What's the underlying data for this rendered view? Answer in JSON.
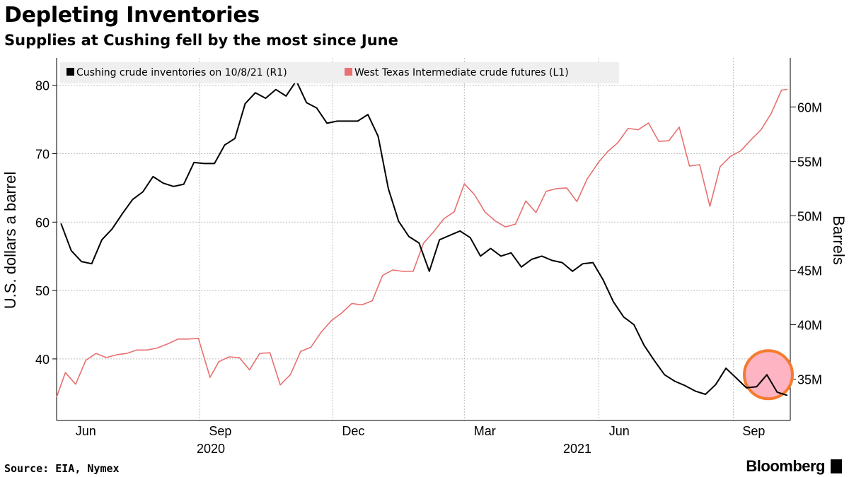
{
  "title": "Depleting Inventories",
  "subtitle": "Supplies at Cushing fell by the most since June",
  "source": "Source: EIA, Nymex",
  "brand": "Bloomberg",
  "chart_data": {
    "type": "line",
    "legend": {
      "placement": "top-left",
      "entries": [
        {
          "label": "Cushing crude inventories on 10/8/21 (R1)",
          "color": "#000000"
        },
        {
          "label": "West Texas Intermediate crude futures (L1)",
          "color": "#e87070"
        }
      ]
    },
    "x_ticks": [
      "Jun",
      "Sep",
      "Dec",
      "Mar",
      "Jun",
      "Sep"
    ],
    "x_year_labels": [
      "2020",
      "2021"
    ],
    "left_axis": {
      "label": "U.S. dollars a barrel",
      "ylim": [
        31,
        84
      ],
      "ticks": [
        "40",
        "50",
        "60",
        "70",
        "80"
      ]
    },
    "right_axis": {
      "label": "Barrels",
      "ylim": [
        31.2,
        64.5
      ],
      "unit": "M",
      "ticks": [
        "35M",
        "40M",
        "45M",
        "50M",
        "55M",
        "60M"
      ]
    },
    "grid": true,
    "highlight": {
      "description": "circled latest drop",
      "color": "#f47c6b",
      "x": "2021-09-25",
      "y_millions": 35.4
    },
    "series": [
      {
        "name": "Cushing crude inventories on 10/8/21 (R1)",
        "axis": "right",
        "color": "#000000",
        "x": [
          "2020-05-29",
          "2020-06-05",
          "2020-06-12",
          "2020-06-19",
          "2020-06-26",
          "2020-07-03",
          "2020-07-10",
          "2020-07-17",
          "2020-07-24",
          "2020-07-31",
          "2020-08-07",
          "2020-08-14",
          "2020-08-21",
          "2020-08-28",
          "2020-09-04",
          "2020-09-11",
          "2020-09-18",
          "2020-09-25",
          "2020-10-02",
          "2020-10-09",
          "2020-10-16",
          "2020-10-23",
          "2020-10-30",
          "2020-11-06",
          "2020-11-13",
          "2020-11-20",
          "2020-11-27",
          "2020-12-04",
          "2020-12-11",
          "2020-12-18",
          "2020-12-25",
          "2021-01-01",
          "2021-01-08",
          "2021-01-15",
          "2021-01-22",
          "2021-01-29",
          "2021-02-05",
          "2021-02-12",
          "2021-02-19",
          "2021-02-26",
          "2021-03-05",
          "2021-03-12",
          "2021-03-19",
          "2021-03-26",
          "2021-04-02",
          "2021-04-09",
          "2021-04-16",
          "2021-04-23",
          "2021-04-30",
          "2021-05-07",
          "2021-05-14",
          "2021-05-21",
          "2021-05-28",
          "2021-06-04",
          "2021-06-11",
          "2021-06-18",
          "2021-06-25",
          "2021-07-02",
          "2021-07-09",
          "2021-07-16",
          "2021-07-23",
          "2021-07-30",
          "2021-08-06",
          "2021-08-13",
          "2021-08-20",
          "2021-08-27",
          "2021-09-03",
          "2021-09-10",
          "2021-09-17",
          "2021-09-24",
          "2021-10-01",
          "2021-10-08"
        ],
        "values": [
          49.3,
          46.8,
          45.8,
          45.6,
          47.8,
          48.8,
          50.2,
          51.5,
          52.2,
          53.6,
          53.0,
          52.7,
          52.9,
          54.9,
          54.8,
          54.8,
          56.5,
          57.1,
          60.3,
          61.3,
          60.8,
          61.6,
          61.0,
          62.4,
          60.4,
          59.9,
          58.5,
          58.7,
          58.7,
          58.7,
          59.3,
          57.3,
          52.5,
          49.5,
          48.1,
          47.5,
          44.9,
          47.8,
          48.2,
          48.6,
          48.0,
          46.3,
          47.0,
          46.3,
          46.6,
          45.3,
          46.0,
          46.3,
          45.9,
          45.7,
          44.9,
          45.6,
          45.7,
          44.1,
          42.1,
          40.7,
          40.0,
          38.1,
          36.7,
          35.4,
          34.8,
          34.4,
          33.9,
          33.6,
          34.5,
          36.0,
          35.1,
          34.2,
          34.3,
          35.4,
          33.8,
          33.5
        ]
      },
      {
        "name": "West Texas Intermediate crude futures (L1)",
        "axis": "left",
        "color": "#e87070",
        "x": [
          "2020-05-26",
          "2020-06-01",
          "2020-06-08",
          "2020-06-15",
          "2020-06-22",
          "2020-06-29",
          "2020-07-06",
          "2020-07-13",
          "2020-07-20",
          "2020-07-27",
          "2020-08-03",
          "2020-08-10",
          "2020-08-17",
          "2020-08-24",
          "2020-08-31",
          "2020-09-08",
          "2020-09-14",
          "2020-09-21",
          "2020-09-28",
          "2020-10-05",
          "2020-10-12",
          "2020-10-19",
          "2020-10-26",
          "2020-11-02",
          "2020-11-09",
          "2020-11-16",
          "2020-11-23",
          "2020-11-30",
          "2020-12-07",
          "2020-12-14",
          "2020-12-21",
          "2020-12-28",
          "2021-01-04",
          "2021-01-11",
          "2021-01-18",
          "2021-01-25",
          "2021-02-01",
          "2021-02-08",
          "2021-02-15",
          "2021-02-22",
          "2021-03-01",
          "2021-03-08",
          "2021-03-15",
          "2021-03-22",
          "2021-03-29",
          "2021-04-05",
          "2021-04-12",
          "2021-04-19",
          "2021-04-26",
          "2021-05-03",
          "2021-05-10",
          "2021-05-17",
          "2021-05-24",
          "2021-06-01",
          "2021-06-07",
          "2021-06-14",
          "2021-06-21",
          "2021-06-28",
          "2021-07-05",
          "2021-07-12",
          "2021-07-19",
          "2021-07-26",
          "2021-08-02",
          "2021-08-09",
          "2021-08-16",
          "2021-08-23",
          "2021-08-30",
          "2021-09-06",
          "2021-09-13",
          "2021-09-20",
          "2021-09-27",
          "2021-10-04",
          "2021-10-08"
        ],
        "values": [
          34.4,
          38.0,
          36.3,
          39.8,
          40.8,
          40.2,
          40.6,
          40.8,
          41.3,
          41.3,
          41.6,
          42.2,
          42.9,
          42.9,
          43.0,
          37.3,
          39.6,
          40.3,
          40.2,
          38.4,
          40.8,
          40.9,
          36.2,
          37.7,
          41.1,
          41.7,
          43.9,
          45.6,
          46.7,
          48.1,
          47.9,
          48.5,
          52.2,
          53.0,
          52.8,
          52.8,
          56.9,
          58.6,
          60.5,
          61.5,
          65.6,
          64.0,
          61.5,
          60.2,
          59.3,
          59.7,
          63.1,
          61.4,
          64.5,
          64.9,
          65.0,
          63.0,
          66.3,
          68.8,
          70.3,
          71.6,
          73.7,
          73.5,
          74.5,
          71.8,
          71.9,
          73.9,
          68.2,
          68.4,
          62.3,
          68.1,
          69.6,
          70.4,
          72.0,
          73.5,
          75.9,
          79.3,
          79.4
        ]
      }
    ]
  }
}
